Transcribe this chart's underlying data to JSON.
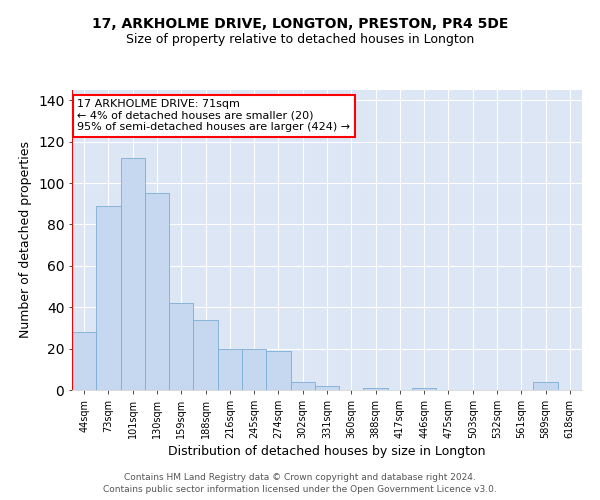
{
  "title": "17, ARKHOLME DRIVE, LONGTON, PRESTON, PR4 5DE",
  "subtitle": "Size of property relative to detached houses in Longton",
  "xlabel": "Distribution of detached houses by size in Longton",
  "ylabel": "Number of detached properties",
  "categories": [
    "44sqm",
    "73sqm",
    "101sqm",
    "130sqm",
    "159sqm",
    "188sqm",
    "216sqm",
    "245sqm",
    "274sqm",
    "302sqm",
    "331sqm",
    "360sqm",
    "388sqm",
    "417sqm",
    "446sqm",
    "475sqm",
    "503sqm",
    "532sqm",
    "561sqm",
    "589sqm",
    "618sqm"
  ],
  "values": [
    28,
    89,
    112,
    95,
    42,
    34,
    20,
    20,
    19,
    4,
    2,
    0,
    1,
    0,
    1,
    0,
    0,
    0,
    0,
    4,
    0
  ],
  "bar_color": "#c5d8f0",
  "bar_edge_color": "#7aadd4",
  "annotation_text": "17 ARKHOLME DRIVE: 71sqm\n← 4% of detached houses are smaller (20)\n95% of semi-detached houses are larger (424) →",
  "annotation_box_color": "white",
  "annotation_box_edge_color": "red",
  "vline_color": "red",
  "ylim": [
    0,
    145
  ],
  "yticks": [
    0,
    20,
    40,
    60,
    80,
    100,
    120,
    140
  ],
  "bg_color": "#dce6f5",
  "footer_line1": "Contains HM Land Registry data © Crown copyright and database right 2024.",
  "footer_line2": "Contains public sector information licensed under the Open Government Licence v3.0.",
  "title_fontsize": 10,
  "subtitle_fontsize": 9,
  "ylabel_fontsize": 9,
  "xlabel_fontsize": 9,
  "tick_fontsize": 7,
  "annotation_fontsize": 8,
  "footer_fontsize": 6.5
}
